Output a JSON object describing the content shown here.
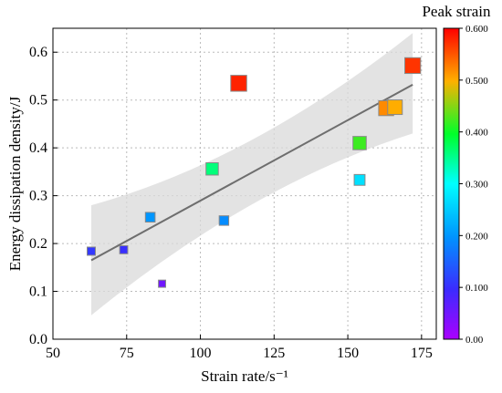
{
  "chart_data": {
    "type": "scatter",
    "xlabel": "Strain rate/s⁻¹",
    "ylabel": "Energy dissipation density/J",
    "xlim": [
      50,
      180
    ],
    "ylim": [
      0,
      0.65
    ],
    "xticks": [
      50,
      75,
      100,
      125,
      150,
      175
    ],
    "yticks": [
      0.0,
      0.1,
      0.2,
      0.3,
      0.4,
      0.5,
      0.6
    ],
    "grid": true,
    "colorbar": {
      "title": "Peak strain",
      "range": [
        0.0,
        0.6
      ],
      "ticks": [
        "0.00",
        "0.100",
        "0.200",
        "0.300",
        "0.400",
        "0.500",
        "0.600"
      ],
      "position": "right"
    },
    "points": [
      {
        "x": 63,
        "y": 0.184,
        "peak_strain": 0.11
      },
      {
        "x": 74,
        "y": 0.187,
        "peak_strain": 0.1
      },
      {
        "x": 83,
        "y": 0.255,
        "peak_strain": 0.2
      },
      {
        "x": 87,
        "y": 0.116,
        "peak_strain": 0.05
      },
      {
        "x": 104,
        "y": 0.356,
        "peak_strain": 0.36
      },
      {
        "x": 108,
        "y": 0.248,
        "peak_strain": 0.19
      },
      {
        "x": 113,
        "y": 0.535,
        "peak_strain": 0.58
      },
      {
        "x": 154,
        "y": 0.41,
        "peak_strain": 0.42
      },
      {
        "x": 154,
        "y": 0.333,
        "peak_strain": 0.27
      },
      {
        "x": 163,
        "y": 0.483,
        "peak_strain": 0.52
      },
      {
        "x": 166,
        "y": 0.485,
        "peak_strain": 0.5
      },
      {
        "x": 172,
        "y": 0.572,
        "peak_strain": 0.57
      }
    ],
    "fit": {
      "type": "linear",
      "x": [
        63,
        172
      ],
      "y": [
        0.165,
        0.532
      ],
      "band_lower": [
        0.05,
        0.43
      ],
      "band_upper": [
        0.28,
        0.64
      ]
    }
  }
}
